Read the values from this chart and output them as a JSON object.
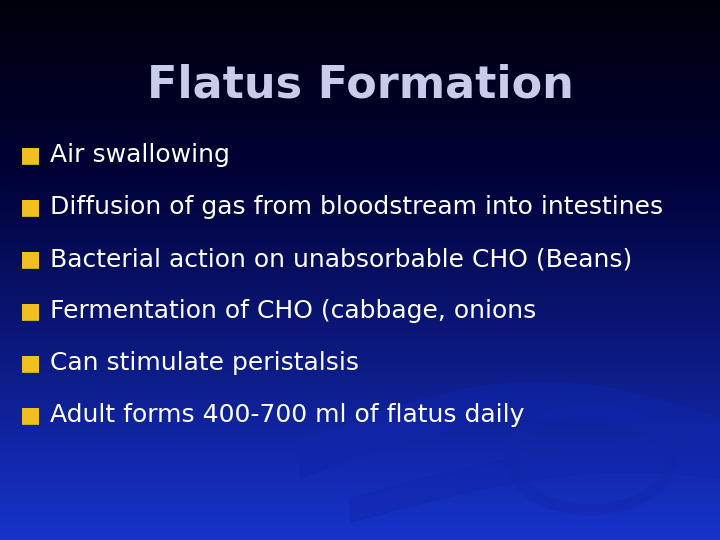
{
  "title": "Flatus Formation",
  "title_color": "#C8CCE8",
  "title_fontsize": 32,
  "title_fontweight": "bold",
  "bullet_items": [
    "Air swallowing",
    "Diffusion of gas from bloodstream into intestines",
    "Bacterial action on unabsorbable CHO (Beans)",
    "Fermentation of CHO (cabbage, onions",
    "Can stimulate peristalsis",
    "Adult forms 400-700 ml of flatus daily"
  ],
  "bullet_color": "#F0C020",
  "text_color": "#FFFFFF",
  "text_fontsize": 18,
  "bg_main": "#1733CC",
  "bg_top": "#000033",
  "wave_color": "#1025AA",
  "bullet_char": "■"
}
